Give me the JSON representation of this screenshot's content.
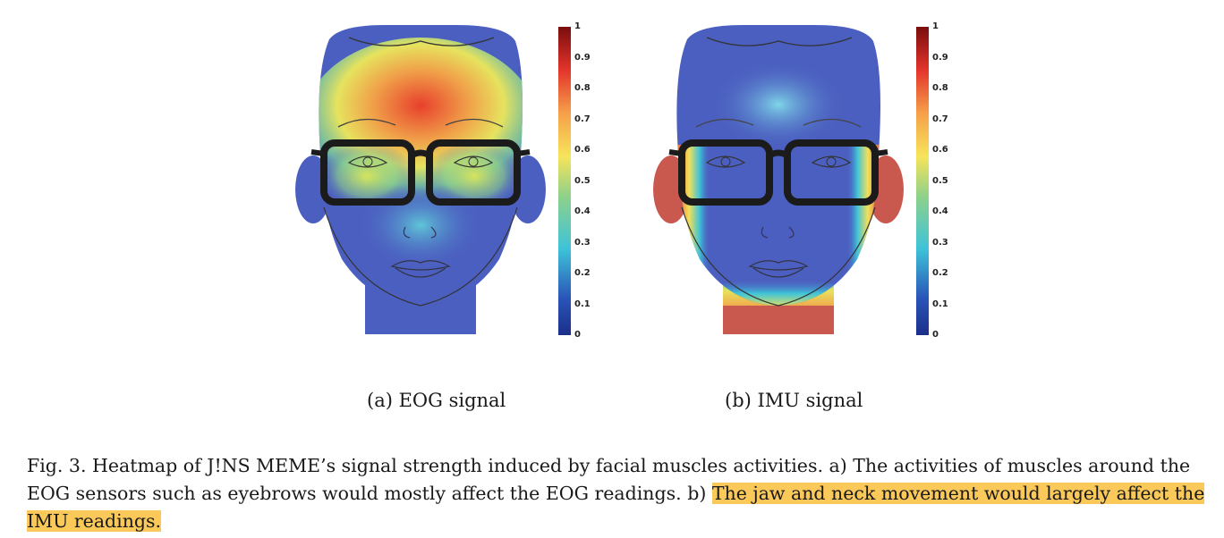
{
  "figure": {
    "panels": [
      {
        "id": "a",
        "subcaption": "(a) EOG signal",
        "heatmap_focus": "eyebrows-eyes-forehead"
      },
      {
        "id": "b",
        "subcaption": "(b) IMU signal",
        "heatmap_focus": "jaw-neck-ears"
      }
    ],
    "colorbar": {
      "ticks": [
        "1",
        "0.9",
        "0.8",
        "0.7",
        "0.6",
        "0.5",
        "0.4",
        "0.3",
        "0.2",
        "0.1",
        "0"
      ],
      "colors": [
        "#7a0d0d",
        "#d7191c",
        "#f46d43",
        "#fdae61",
        "#fee08b",
        "#a6d96a",
        "#3ec3d8",
        "#2c7bb6",
        "#1f3f99"
      ]
    },
    "caption": {
      "plain": "Fig. 3.  Heatmap of J!NS MEME’s signal strength induced by facial muscles activities. a) The activities of muscles around the EOG sensors such as eyebrows would mostly affect the EOG readings. b) ",
      "highlighted": "The jaw and neck movement would largely affect the IMU readings.",
      "highlight_color": "#fbc95a"
    }
  }
}
